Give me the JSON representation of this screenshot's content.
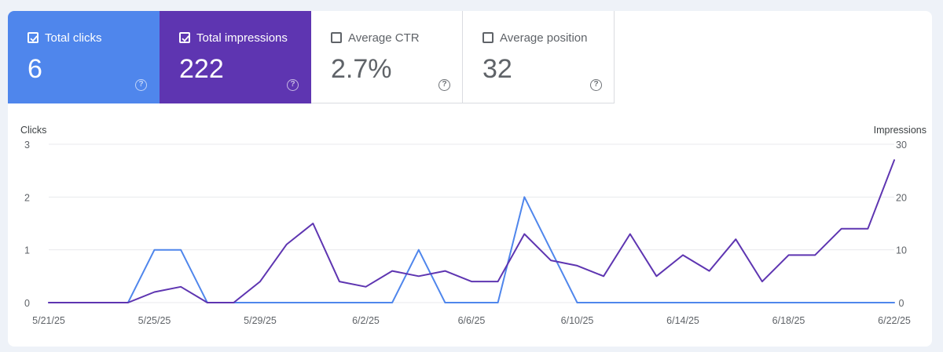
{
  "metrics": {
    "clicks": {
      "label": "Total clicks",
      "value": "6",
      "checked": true,
      "color": "#4f86ec"
    },
    "impressions": {
      "label": "Total impressions",
      "value": "222",
      "checked": true,
      "color": "#5e35b1"
    },
    "ctr": {
      "label": "Average CTR",
      "value": "2.7%",
      "checked": false
    },
    "position": {
      "label": "Average position",
      "value": "32",
      "checked": false
    }
  },
  "chart_data": {
    "type": "line",
    "ylabel_left": "Clicks",
    "ylabel_right": "Impressions",
    "left_axis": {
      "range": [
        0,
        3
      ],
      "ticks": [
        "0",
        "1",
        "2",
        "3"
      ]
    },
    "right_axis": {
      "range": [
        0,
        30
      ],
      "ticks": [
        "0",
        "10",
        "20",
        "30"
      ]
    },
    "x_tick_labels": [
      "5/21/25",
      "5/25/25",
      "5/29/25",
      "6/2/25",
      "6/6/25",
      "6/10/25",
      "6/14/25",
      "6/18/25",
      "6/22/25"
    ],
    "x": [
      "5/21/25",
      "5/22/25",
      "5/23/25",
      "5/24/25",
      "5/25/25",
      "5/26/25",
      "5/27/25",
      "5/28/25",
      "5/29/25",
      "5/30/25",
      "5/31/25",
      "6/1/25",
      "6/2/25",
      "6/3/25",
      "6/4/25",
      "6/5/25",
      "6/6/25",
      "6/7/25",
      "6/8/25",
      "6/9/25",
      "6/10/25",
      "6/11/25",
      "6/12/25",
      "6/13/25",
      "6/14/25",
      "6/15/25",
      "6/16/25",
      "6/17/25",
      "6/18/25",
      "6/19/25",
      "6/20/25",
      "6/21/25",
      "6/22/25"
    ],
    "series": [
      {
        "name": "Clicks",
        "axis": "left",
        "color": "#4f86ec",
        "values": [
          0,
          0,
          0,
          0,
          1,
          1,
          0,
          0,
          0,
          0,
          0,
          0,
          0,
          0,
          1,
          0,
          0,
          0,
          2,
          1,
          0,
          0,
          0,
          0,
          0,
          0,
          0,
          0,
          0,
          0,
          0,
          0,
          0
        ]
      },
      {
        "name": "Impressions",
        "axis": "right",
        "color": "#5e35b1",
        "values": [
          0,
          0,
          0,
          0,
          2,
          3,
          0,
          0,
          4,
          11,
          15,
          4,
          3,
          6,
          5,
          6,
          4,
          4,
          13,
          8,
          7,
          5,
          13,
          5,
          9,
          6,
          12,
          4,
          9,
          9,
          14,
          14,
          27
        ]
      }
    ],
    "grid": true
  }
}
